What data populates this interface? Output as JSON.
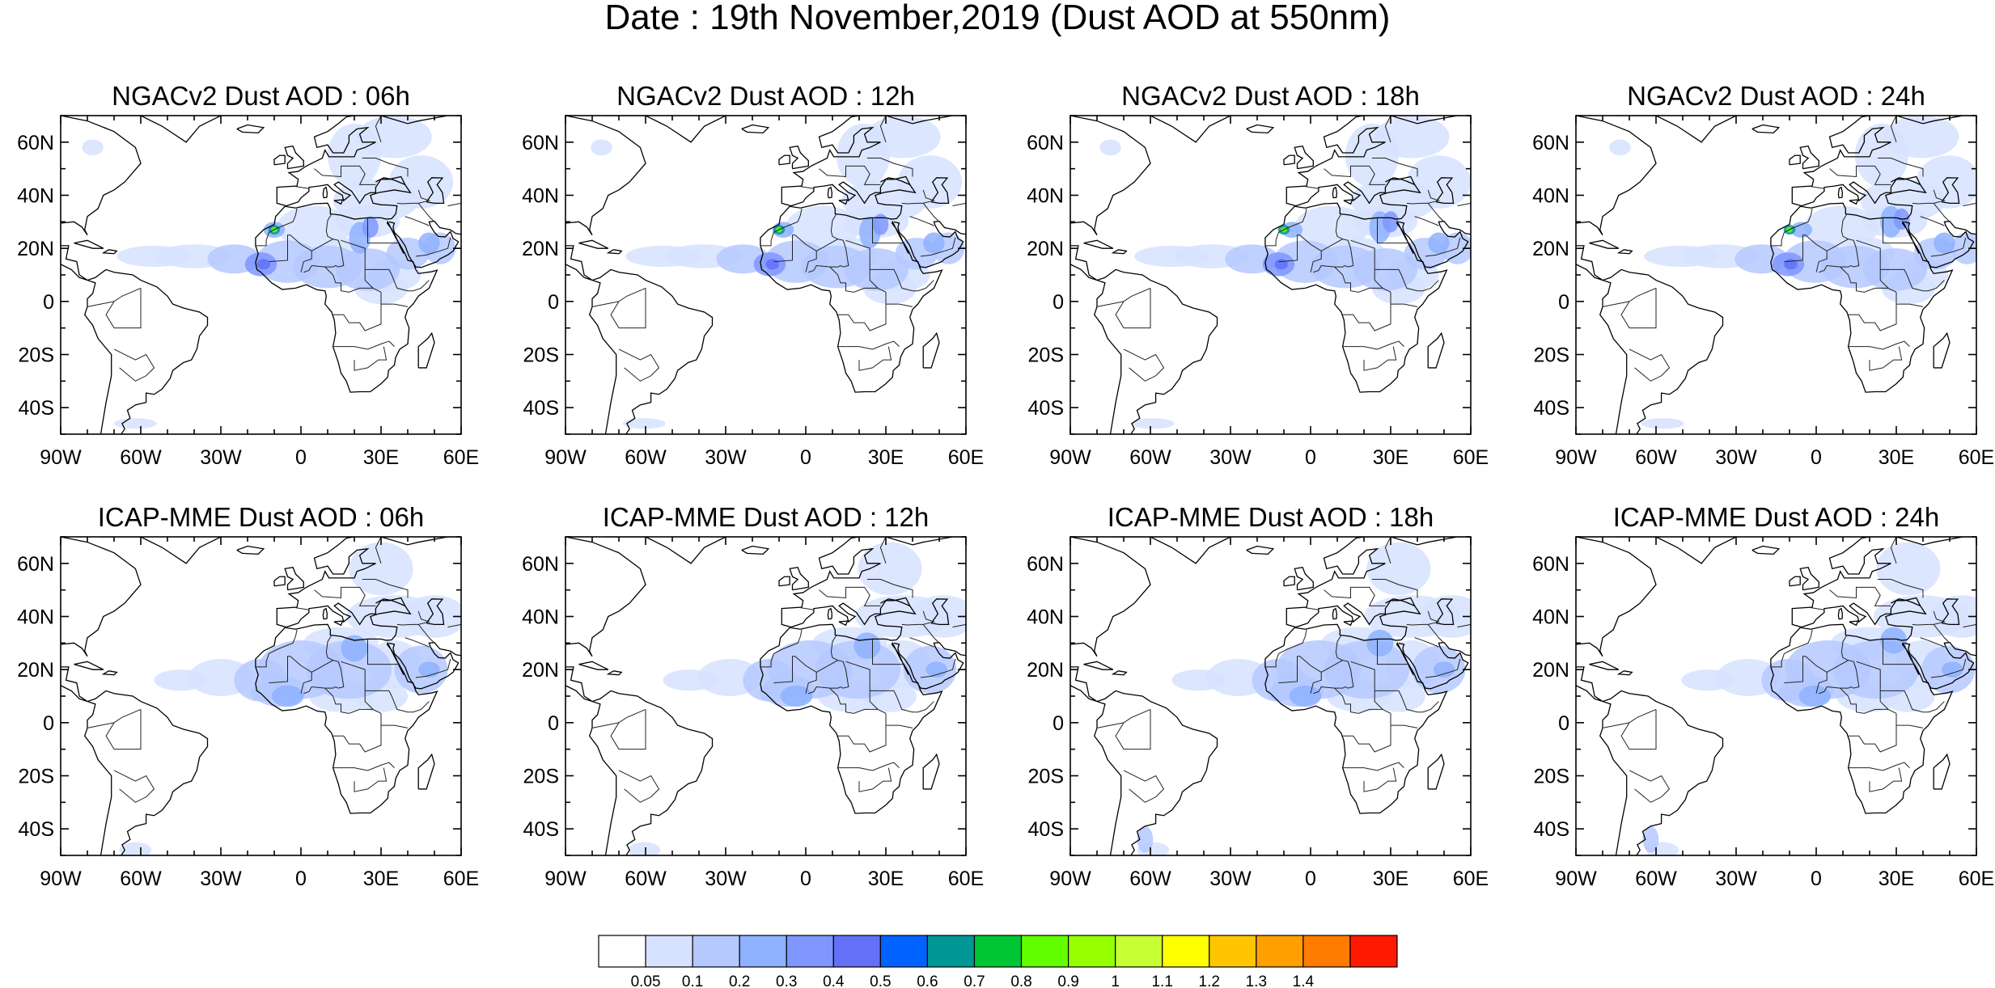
{
  "figure": {
    "title": "Date : 19th November,2019 (Dust AOD at 550nm)"
  },
  "panels": [
    {
      "id": "ngac-06",
      "title": "NGACv2 Dust AOD : 06h",
      "model": "NGACv2",
      "hour": 6
    },
    {
      "id": "ngac-12",
      "title": "NGACv2 Dust AOD : 12h",
      "model": "NGACv2",
      "hour": 12
    },
    {
      "id": "ngac-18",
      "title": "NGACv2 Dust AOD : 18h",
      "model": "NGACv2",
      "hour": 18
    },
    {
      "id": "ngac-24",
      "title": "NGACv2 Dust AOD : 24h",
      "model": "NGACv2",
      "hour": 24
    },
    {
      "id": "icap-06",
      "title": "ICAP-MME Dust AOD : 06h",
      "model": "ICAP-MME",
      "hour": 6
    },
    {
      "id": "icap-12",
      "title": "ICAP-MME Dust AOD : 12h",
      "model": "ICAP-MME",
      "hour": 12
    },
    {
      "id": "icap-18",
      "title": "ICAP-MME Dust AOD : 18h",
      "model": "ICAP-MME",
      "hour": 18
    },
    {
      "id": "icap-24",
      "title": "ICAP-MME Dust AOD : 24h",
      "model": "ICAP-MME",
      "hour": 24
    }
  ],
  "map": {
    "lon_range": [
      -90,
      60
    ],
    "lat_range": [
      -50,
      70
    ],
    "lon_ticks": [
      {
        "value": -90,
        "label": "90W"
      },
      {
        "value": -60,
        "label": "60W"
      },
      {
        "value": -30,
        "label": "30W"
      },
      {
        "value": 0,
        "label": "0"
      },
      {
        "value": 30,
        "label": "30E"
      },
      {
        "value": 60,
        "label": "60E"
      }
    ],
    "lat_ticks": [
      {
        "value": 60,
        "label": "60N"
      },
      {
        "value": 40,
        "label": "40N"
      },
      {
        "value": 20,
        "label": "20N"
      },
      {
        "value": 0,
        "label": "0"
      },
      {
        "value": -20,
        "label": "20S"
      },
      {
        "value": -40,
        "label": "40S"
      }
    ]
  },
  "colorbar": {
    "labels": [
      "0.05",
      "0.1",
      "0.2",
      "0.3",
      "0.4",
      "0.5",
      "0.6",
      "0.7",
      "0.8",
      "0.9",
      "1",
      "1.1",
      "1.2",
      "1.3",
      "1.4"
    ],
    "colors": [
      "#ffffff",
      "#d6e2ff",
      "#b5c9ff",
      "#8eb2ff",
      "#7f96ff",
      "#6370f8",
      "#0063ff",
      "#009696",
      "#00c633",
      "#63ff00",
      "#96ff00",
      "#c6ff33",
      "#ffff00",
      "#ffc600",
      "#ffa000",
      "#ff7c00",
      "#ff1900"
    ]
  }
}
